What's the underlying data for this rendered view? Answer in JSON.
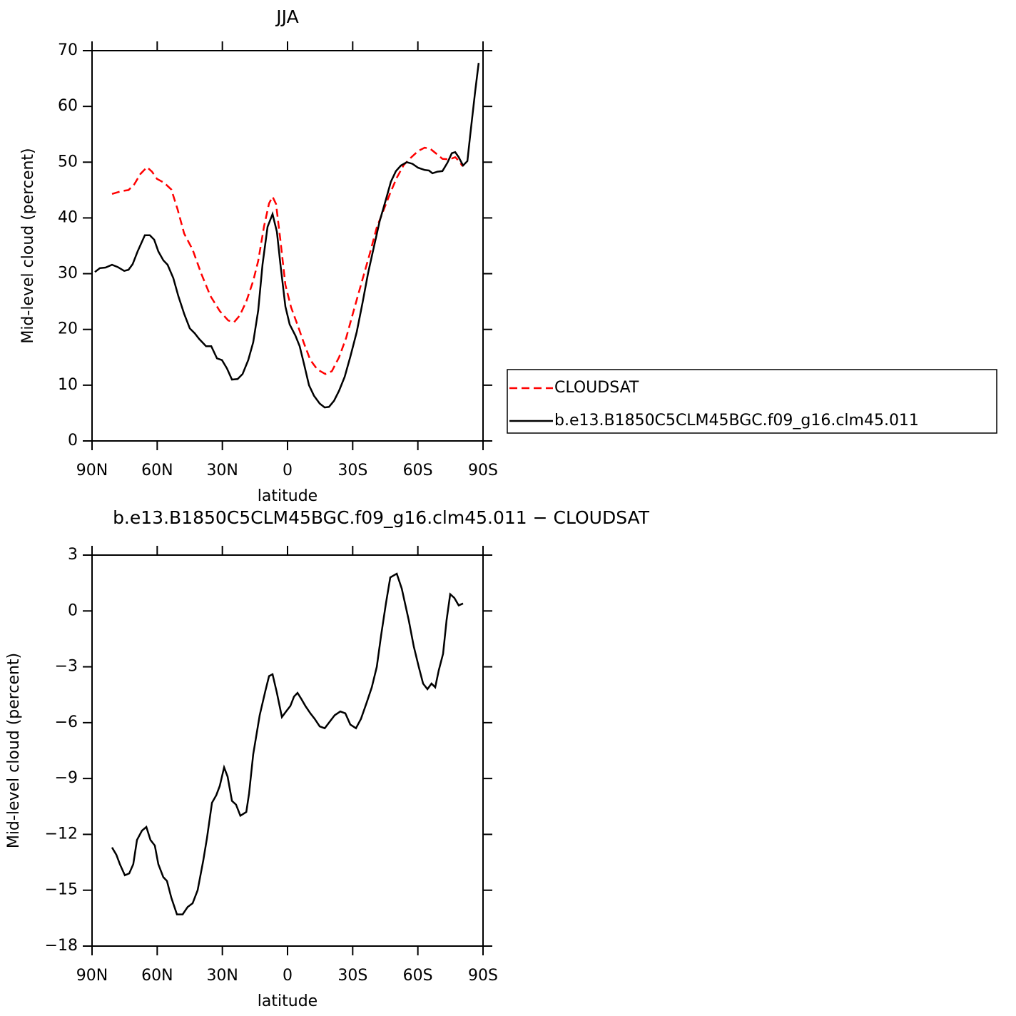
{
  "chart_data": [
    {
      "type": "line",
      "title": "JJA",
      "xlabel": "latitude",
      "ylabel": "Mid-level cloud (percent)",
      "xlim": [
        90,
        -90
      ],
      "ylim": [
        0,
        70
      ],
      "xticks": [
        {
          "value": 90,
          "label": "90N"
        },
        {
          "value": 60,
          "label": "60N"
        },
        {
          "value": 30,
          "label": "30N"
        },
        0,
        {
          "value": -30,
          "label": "30S"
        },
        {
          "value": -60,
          "label": "60S"
        },
        {
          "value": -90,
          "label": "90S"
        }
      ],
      "yticks": [
        0,
        10,
        20,
        30,
        40,
        50,
        60,
        70
      ],
      "legend": "right",
      "series": [
        {
          "name": "CLOUDSAT",
          "color": "#ff0000",
          "style": "dashed",
          "x": [
            80.8,
            76.5,
            73.2,
            70.6,
            67.7,
            64.7,
            62.4,
            60.1,
            56.8,
            53.5,
            50.6,
            47.6,
            43.7,
            39.7,
            35.5,
            31.2,
            27.3,
            24.6,
            22,
            19,
            15.8,
            13.5,
            10.8,
            8.5,
            6.9,
            5.3,
            3.3,
            1,
            -1.6,
            -4.9,
            -7.6,
            -10.5,
            -13.8,
            -17.4,
            -20.4,
            -23.7,
            -27,
            -30.2,
            -33.8,
            -37.8,
            -41.1,
            -44,
            -47.3,
            -50.3,
            -53.5,
            -56.8,
            -60.1,
            -63.1,
            -65.7,
            -68.6,
            -71.3,
            -74.6,
            -77.2,
            -79.2,
            -80.5
          ],
          "values": [
            44.3,
            44.8,
            45,
            46,
            47.9,
            49.1,
            48.3,
            47,
            46.3,
            45.1,
            41.5,
            37.2,
            34.3,
            30,
            26,
            23.3,
            21.6,
            21.3,
            22.5,
            25,
            28.7,
            32.3,
            38.5,
            42.6,
            43.8,
            42.5,
            36,
            28,
            24,
            20.5,
            17.5,
            14.5,
            12.8,
            12,
            12.5,
            15,
            18.5,
            23,
            28,
            33.5,
            38.3,
            41.2,
            44.5,
            47.2,
            49.5,
            50.8,
            52,
            52.6,
            52.4,
            51.5,
            50.6,
            50.5,
            50.9,
            50.1,
            49.3
          ]
        },
        {
          "name": "b.e13.B1850C5CLM45BGC.f09_g16.clm45.011",
          "color": "#000000",
          "style": "solid",
          "x": [
            88.7,
            86.4,
            83.8,
            80.8,
            78.2,
            75.2,
            73.2,
            71.3,
            69,
            65.7,
            63.4,
            61.4,
            59.5,
            57.2,
            55.2,
            52.6,
            50.3,
            47.6,
            45,
            42.7,
            40.7,
            37.5,
            35.1,
            32.5,
            30.2,
            27.9,
            25.6,
            23,
            20.7,
            18.1,
            15.8,
            13.5,
            11.5,
            9.2,
            6.9,
            4.9,
            3.3,
            1,
            -1,
            -3.6,
            -5.6,
            -7.6,
            -9.9,
            -12.2,
            -14.8,
            -17.1,
            -19.1,
            -21.4,
            -23.7,
            -26.3,
            -28.9,
            -31.9,
            -34.5,
            -37.1,
            -39.8,
            -42.4,
            -45.3,
            -47.6,
            -49.9,
            -52.2,
            -54.9,
            -57.5,
            -60.1,
            -63.1,
            -65.1,
            -66.7,
            -69,
            -71.3,
            -73.6,
            -75.6,
            -77.2,
            -78.8,
            -80.8,
            -82.8,
            -84.1,
            -86.4,
            -88
          ],
          "values": [
            30.3,
            31,
            31.1,
            31.6,
            31.2,
            30.5,
            30.7,
            31.7,
            34,
            36.9,
            36.9,
            36.1,
            34,
            32.4,
            31.6,
            29.2,
            26,
            22.8,
            20.2,
            19.3,
            18.3,
            17,
            17,
            14.8,
            14.5,
            13,
            11,
            11.1,
            12,
            14.5,
            17.7,
            23.4,
            31.7,
            38.4,
            40.7,
            37.5,
            31.7,
            24.1,
            20.9,
            18.9,
            17,
            13.8,
            10,
            8.1,
            6.7,
            6,
            6.1,
            7.2,
            9,
            11.5,
            15.1,
            19.6,
            24.7,
            30.1,
            34.9,
            39.4,
            43.3,
            46.5,
            48.4,
            49.4,
            50,
            49.7,
            49,
            48.6,
            48.5,
            48,
            48.3,
            48.4,
            49.9,
            51.6,
            51.8,
            50.9,
            49.4,
            50.2,
            54.8,
            62.7,
            67.8
          ]
        }
      ]
    },
    {
      "type": "line",
      "title": "b.e13.B1850C5CLM45BGC.f09_g16.clm45.011 − CLOUDSAT",
      "xlabel": "latitude",
      "ylabel": "Mid-level cloud (percent)",
      "xlim": [
        90,
        -90
      ],
      "ylim": [
        -18,
        3
      ],
      "xticks": [
        {
          "value": 90,
          "label": "90N"
        },
        {
          "value": 60,
          "label": "60N"
        },
        {
          "value": 30,
          "label": "30N"
        },
        0,
        {
          "value": -30,
          "label": "30S"
        },
        {
          "value": -60,
          "label": "60S"
        },
        {
          "value": -90,
          "label": "90S"
        }
      ],
      "yticks": [
        {
          "value": -18,
          "label": "−18"
        },
        {
          "value": -15,
          "label": "−15"
        },
        {
          "value": -12,
          "label": "−12"
        },
        {
          "value": -9,
          "label": "−9"
        },
        {
          "value": -6,
          "label": "−6"
        },
        {
          "value": -3,
          "label": "−3"
        },
        0,
        3
      ],
      "color": "#000000",
      "x": [
        80.8,
        78.8,
        77.2,
        74.9,
        72.9,
        71,
        69.3,
        67,
        65,
        63.1,
        61.1,
        59.5,
        57.2,
        55.5,
        53.5,
        50.9,
        48.3,
        46,
        43.7,
        41.4,
        38.8,
        37.1,
        34.8,
        32.8,
        31.2,
        29.2,
        27.6,
        25.6,
        23.7,
        21.7,
        19,
        17.7,
        15.8,
        12.8,
        10.2,
        8.5,
        6.9,
        4.9,
        2.6,
        0.7,
        -1.3,
        -3,
        -4.6,
        -6.2,
        -8.2,
        -10.5,
        -12.5,
        -14.8,
        -17.1,
        -19.1,
        -21.7,
        -24.3,
        -26.6,
        -28.9,
        -31.5,
        -33.8,
        -36.5,
        -38.8,
        -41.1,
        -43.1,
        -45.3,
        -47.3,
        -50.3,
        -52.6,
        -55.8,
        -58.1,
        -60.4,
        -62.4,
        -64.4,
        -66.3,
        -68,
        -69.6,
        -71.6,
        -73.2,
        -74.9,
        -76.8,
        -78.8,
        -80.8
      ],
      "values": [
        -12.7,
        -13.1,
        -13.6,
        -14.2,
        -14.1,
        -13.6,
        -12.3,
        -11.8,
        -11.6,
        -12.3,
        -12.6,
        -13.6,
        -14.3,
        -14.5,
        -15.4,
        -16.3,
        -16.3,
        -15.9,
        -15.7,
        -15,
        -13.4,
        -12.2,
        -10.3,
        -9.9,
        -9.4,
        -8.4,
        -8.9,
        -10.2,
        -10.4,
        -11,
        -10.8,
        -9.8,
        -7.7,
        -5.6,
        -4.3,
        -3.5,
        -3.4,
        -4.4,
        -5.7,
        -5.4,
        -5.1,
        -4.6,
        -4.4,
        -4.7,
        -5.1,
        -5.5,
        -5.8,
        -6.2,
        -6.3,
        -6,
        -5.6,
        -5.4,
        -5.5,
        -6.1,
        -6.3,
        -5.8,
        -4.9,
        -4.1,
        -3,
        -1.3,
        0.4,
        1.8,
        2,
        1.2,
        -0.5,
        -1.9,
        -3,
        -3.9,
        -4.2,
        -3.9,
        -4.1,
        -3.2,
        -2.3,
        -0.5,
        0.9,
        0.7,
        0.3,
        0.4
      ]
    }
  ]
}
